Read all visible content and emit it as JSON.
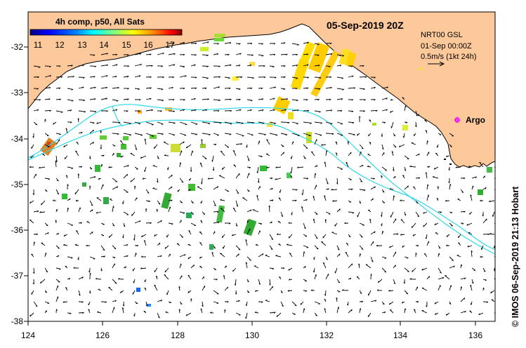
{
  "title": "05-Sep-2019 20Z",
  "colorbar": {
    "title": "4h comp, p50, All Sats",
    "ticks": [
      "11",
      "12",
      "13",
      "14",
      "15",
      "16",
      "17"
    ],
    "colors": [
      "#00007f",
      "#0000ff",
      "#0080ff",
      "#00ffff",
      "#80ff80",
      "#ffff00",
      "#ff8000",
      "#ff0000",
      "#7f0000"
    ]
  },
  "current_info": {
    "product": "NRT00 GSL",
    "date": "01-Sep 00:00Z",
    "scale": "0.5m/s (1kt 24h)"
  },
  "argo_label": "Argo",
  "credit": "© IMOS 06-Sep-2019 21:13 Hobart",
  "axes": {
    "lon_labels": [
      "124",
      "126",
      "128",
      "130",
      "132",
      "134",
      "136"
    ],
    "lat_labels": [
      "-32",
      "-33",
      "-34",
      "-35",
      "-36",
      "-37",
      "-38"
    ]
  },
  "colors": {
    "land": "#fdc99b",
    "contour": "#30d8e8",
    "argo": "#ff00ff",
    "arrow": "#000000"
  }
}
